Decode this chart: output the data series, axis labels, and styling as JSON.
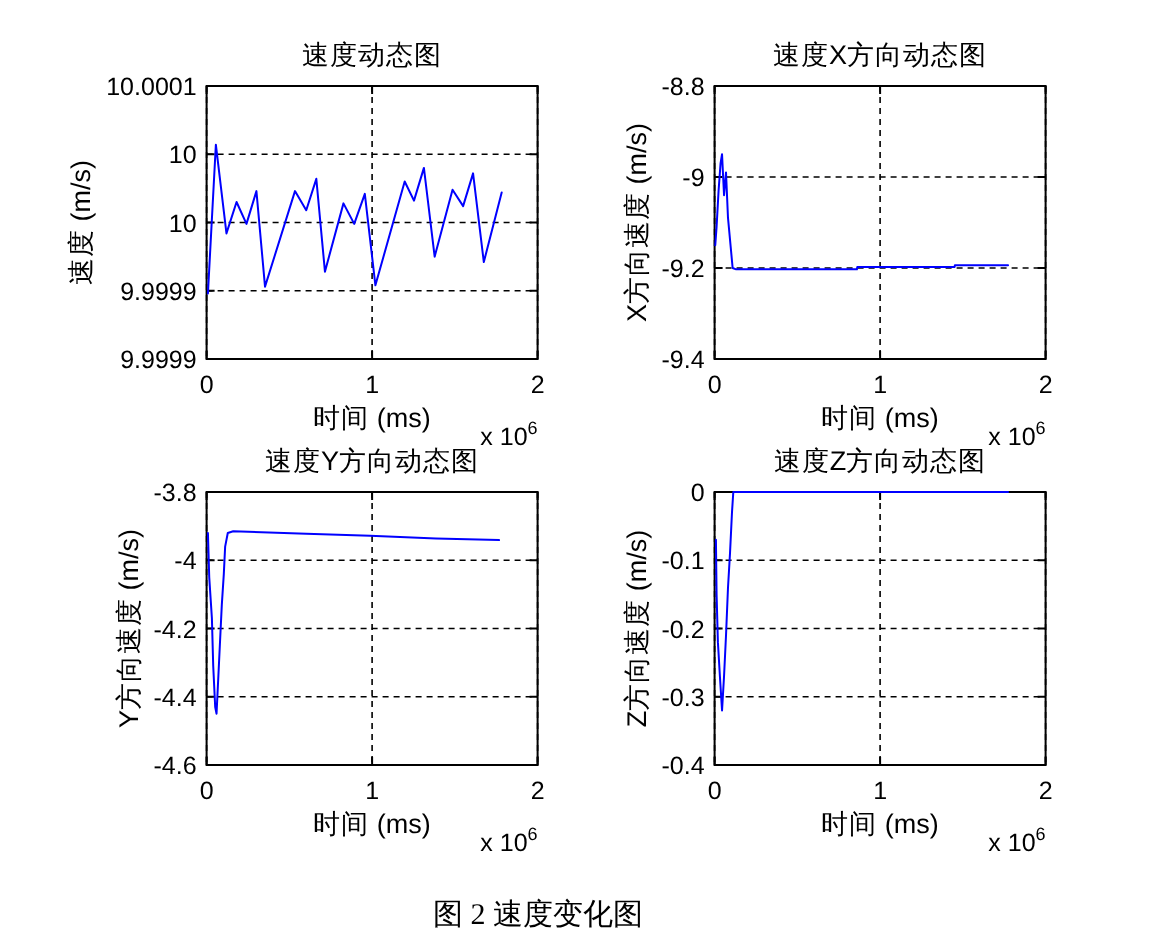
{
  "chart_data": [
    {
      "type": "line",
      "title": "速度动态图",
      "xlabel": "时间 (ms)",
      "ylabel": "速度 (m/s)",
      "x": [
        0.008,
        0.056,
        0.12,
        0.181,
        0.241,
        0.301,
        0.353,
        0.534,
        0.602,
        0.663,
        0.715,
        0.827,
        0.892,
        0.956,
        1.02,
        1.197,
        1.253,
        1.313,
        1.378,
        1.486,
        1.55,
        1.61,
        1.675,
        1.783
      ],
      "series": [
        {
          "color": "#0000ff",
          "values": [
            9.999948,
            10.000057,
            9.999992,
            10.000015,
            9.999999,
            10.000023,
            9.999953,
            10.000023,
            10.000009,
            10.000032,
            9.999964,
            10.000014,
            9.999999,
            10.000021,
            9.999954,
            10.00003,
            10.000016,
            10.00004,
            9.999975,
            10.000024,
            10.000012,
            10.000036,
            9.999971,
            10.000022
          ]
        }
      ],
      "xlim": [
        0,
        2
      ],
      "xticks": [
        0,
        1,
        2
      ],
      "ylim": [
        9.9999,
        10.0001
      ],
      "yticks": [
        {
          "value": 9.9999,
          "label": "9.9999"
        },
        {
          "value": 9.99995,
          "label": "9.9999"
        },
        {
          "value": 10,
          "label": "10"
        },
        {
          "value": 10.00005,
          "label": "10"
        },
        {
          "value": 10.0001,
          "label": "10.0001"
        }
      ],
      "grid": true,
      "line_style": "solid",
      "annotations": [
        "x 10$^{6}$"
      ]
    },
    {
      "type": "line",
      "title": "速度X方向动态图",
      "xlabel": "时间 (ms)",
      "ylabel": "X方向速度 (m/s)",
      "x": [
        0.004,
        0.012,
        0.024,
        0.036,
        0.045,
        0.057,
        0.069,
        0.081,
        0.109,
        0.13,
        0.2,
        0.86,
        0.862,
        1.45,
        1.452,
        1.773
      ],
      "series": [
        {
          "color": "#0000ff",
          "values": [
            -9.15,
            -9.11,
            -9.03,
            -8.97,
            -8.95,
            -9.04,
            -8.99,
            -9.09,
            -9.2,
            -9.203,
            -9.203,
            -9.203,
            -9.198,
            -9.198,
            -9.194,
            -9.194
          ]
        }
      ],
      "xlim": [
        0,
        2
      ],
      "xticks": [
        0,
        1,
        2
      ],
      "ylim": [
        -9.4,
        -8.8
      ],
      "yticks": [
        -9.4,
        -9.2,
        -9,
        -8.8
      ],
      "grid": true,
      "line_style": "solid",
      "annotations": [
        "x 10$^{6}$"
      ]
    },
    {
      "type": "line",
      "title": "速度Y方向动态图",
      "xlabel": "时间 (ms)",
      "ylabel": "Y方向速度 (m/s)",
      "x": [
        0.008,
        0.016,
        0.032,
        0.04,
        0.052,
        0.06,
        0.068,
        0.08,
        0.092,
        0.104,
        0.112,
        0.128,
        0.161,
        0.602,
        0.988,
        1.386,
        1.767
      ],
      "series": [
        {
          "color": "#0000ff",
          "values": [
            -3.92,
            -4.05,
            -4.17,
            -4.31,
            -4.43,
            -4.45,
            -4.37,
            -4.25,
            -4.13,
            -4.04,
            -3.96,
            -3.92,
            -3.915,
            -3.922,
            -3.928,
            -3.936,
            -3.941
          ]
        }
      ],
      "xlim": [
        0,
        2
      ],
      "xticks": [
        0,
        1,
        2
      ],
      "ylim": [
        -4.6,
        -3.8
      ],
      "yticks": [
        -4.6,
        -4.4,
        -4.2,
        -4,
        -3.8
      ],
      "grid": true,
      "line_style": "solid",
      "annotations": [
        "x 10$^{6}$"
      ]
    },
    {
      "type": "line",
      "title": "速度Z方向动态图",
      "xlabel": "时间 (ms)",
      "ylabel": "Z方向速度 (m/s)",
      "x": [
        0.008,
        0.012,
        0.02,
        0.032,
        0.045,
        0.057,
        0.069,
        0.081,
        0.093,
        0.105,
        0.113,
        1.773
      ],
      "series": [
        {
          "color": "#0000ff",
          "values": [
            -0.07,
            -0.15,
            -0.22,
            -0.27,
            -0.32,
            -0.27,
            -0.21,
            -0.14,
            -0.09,
            -0.03,
            0,
            0
          ]
        }
      ],
      "xlim": [
        0,
        2
      ],
      "xticks": [
        0,
        1,
        2
      ],
      "ylim": [
        -0.4,
        0
      ],
      "yticks": [
        -0.4,
        -0.3,
        -0.2,
        -0.1,
        0
      ],
      "grid": true,
      "line_style": "solid",
      "annotations": [
        "x 10$^{6}$",
        "图 2 速度变化图"
      ]
    }
  ]
}
